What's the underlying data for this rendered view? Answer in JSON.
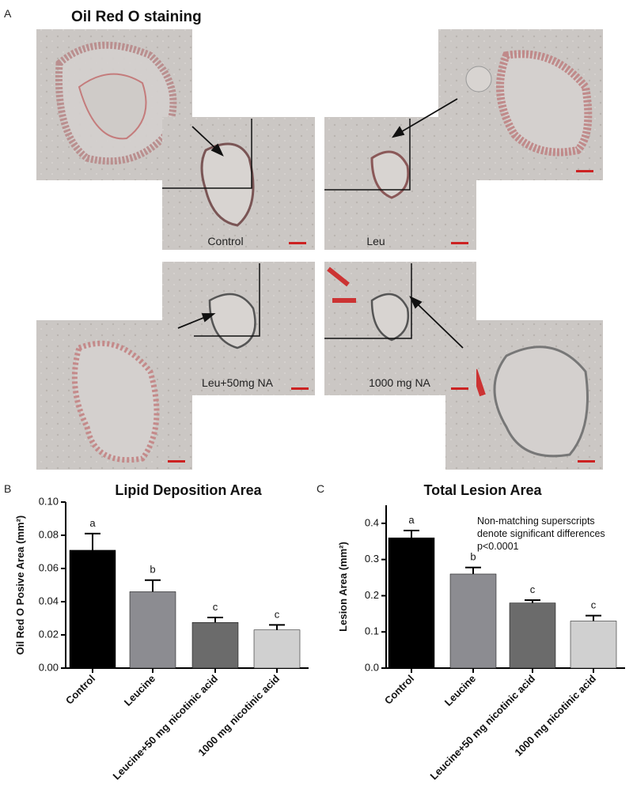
{
  "panel_a": {
    "label": "A",
    "title": "Oil Red O staining",
    "images": [
      "Control",
      "Leu",
      "Leu+50mg NA",
      "1000 mg NA"
    ]
  },
  "chart_data": [
    {
      "type": "bar",
      "panel": "B",
      "title": "Lipid Deposition Area",
      "y_label": "Oil Red O Posive Area (mm²)",
      "categories": [
        "Control",
        "Leucine",
        "Leucine+50 mg nicotinic acid",
        "1000 mg nicotinic acid"
      ],
      "values": [
        0.071,
        0.046,
        0.0275,
        0.023
      ],
      "errors": [
        0.01,
        0.007,
        0.003,
        0.003
      ],
      "letters": [
        "a",
        "b",
        "c",
        "c"
      ],
      "colors": [
        "#000000",
        "#8c8c91",
        "#6b6b6b",
        "#d0d0d0"
      ],
      "ylim": [
        0,
        0.1
      ],
      "yticks": [
        {
          "value": 0,
          "label": "0.00"
        },
        {
          "value": 0.02,
          "label": "0.02"
        },
        {
          "value": 0.04,
          "label": "0.04"
        },
        {
          "value": 0.06,
          "label": "0.06"
        },
        {
          "value": 0.08,
          "label": "0.08"
        },
        {
          "value": 0.1,
          "label": "0.10"
        }
      ]
    },
    {
      "type": "bar",
      "panel": "C",
      "title": "Total Lesion Area",
      "y_label": "Lesion Area (mm²)",
      "categories": [
        "Control",
        "Leucine",
        "Leucine+50 mg nicotinic acid",
        "1000 mg nicotinic acid"
      ],
      "values": [
        0.36,
        0.26,
        0.18,
        0.13
      ],
      "errors": [
        0.02,
        0.018,
        0.008,
        0.015
      ],
      "letters": [
        "a",
        "b",
        "c",
        "c"
      ],
      "colors": [
        "#000000",
        "#8c8c91",
        "#6b6b6b",
        "#d0d0d0"
      ],
      "ylim": [
        0,
        0.45
      ],
      "yticks": [
        {
          "value": 0,
          "label": "0.0"
        },
        {
          "value": 0.1,
          "label": "0.1"
        },
        {
          "value": 0.2,
          "label": "0.2"
        },
        {
          "value": 0.3,
          "label": "0.3"
        },
        {
          "value": 0.4,
          "label": "0.4"
        }
      ],
      "annotation": [
        "Non-matching superscripts",
        "denote significant differences",
        "p<0.0001"
      ]
    }
  ]
}
